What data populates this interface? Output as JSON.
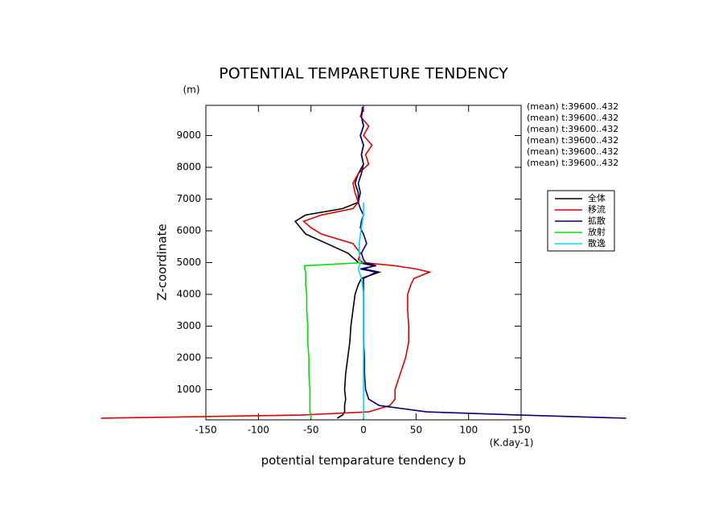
{
  "chart_data": {
    "type": "line",
    "title": "POTENTIAL TEMPARETURE TENDENCY",
    "x_label": "potential temparature tendency b",
    "y_label": "Z-coordinate",
    "x_unit": "(K.day-1)",
    "y_unit": "(m)",
    "annotations": [
      "(mean) t:39600..432",
      "(mean) t:39600..432",
      "(mean) t:39600..432",
      "(mean) t:39600..432",
      "(mean) t:39600..432",
      "(mean) t:39600..432"
    ],
    "y": [
      100,
      200,
      300,
      500,
      700,
      1000,
      1500,
      2000,
      2500,
      3000,
      3500,
      4000,
      4300,
      4500,
      4700,
      4800,
      4900,
      5000,
      5100,
      5300,
      5600,
      5900,
      6100,
      6300,
      6500,
      6700,
      6900,
      7200,
      7500,
      7800,
      8100,
      8400,
      8700,
      9000,
      9300,
      9600,
      9900
    ],
    "series": [
      {
        "name": "全体",
        "color": "#000000",
        "values": [
          -25,
          -20,
          -18,
          -18,
          -17,
          -18,
          -17,
          -15,
          -13,
          -12,
          -10,
          -8,
          -5,
          -2,
          15,
          0,
          10,
          -5,
          -8,
          -15,
          -35,
          -55,
          -60,
          -65,
          -55,
          -20,
          -5,
          -5,
          -8,
          -5,
          0,
          -2,
          0,
          -3,
          0,
          -2,
          0
        ]
      },
      {
        "name": "移流",
        "color": "#e00000",
        "values": [
          -250,
          -60,
          5,
          25,
          30,
          30,
          35,
          40,
          43,
          43,
          42,
          42,
          45,
          48,
          63,
          50,
          30,
          0,
          -5,
          -3,
          -10,
          -40,
          -50,
          -57,
          -40,
          -10,
          -5,
          -8,
          -10,
          -5,
          5,
          2,
          8,
          0,
          5,
          -3,
          0
        ]
      },
      {
        "name": "拡散",
        "color": "#000080",
        "values": [
          250,
          150,
          60,
          15,
          5,
          2,
          1,
          1,
          0,
          0,
          0,
          0,
          0,
          0,
          12,
          -3,
          12,
          2,
          0,
          -2,
          3,
          0,
          -3,
          -2,
          0,
          -3,
          -5,
          -3,
          -5,
          -2,
          0,
          -2,
          0,
          -3,
          0,
          -2,
          -1
        ]
      },
      {
        "name": "放射",
        "color": "#00e000",
        "values": [
          -50,
          -50,
          -51,
          -51,
          -51,
          -51,
          -52,
          -52,
          -53,
          -53,
          -54,
          -54,
          -55,
          -55,
          -55,
          -56,
          -56,
          0,
          null,
          null,
          null,
          null,
          null,
          null,
          null,
          null,
          null,
          null,
          null,
          null,
          null,
          null,
          null,
          null,
          null,
          null,
          null
        ]
      },
      {
        "name": "散逸",
        "color": "#00e0e0",
        "values": [
          0,
          0,
          0,
          0,
          0,
          0,
          0,
          0,
          0,
          0,
          0,
          0,
          -1,
          -2,
          -4,
          -5,
          -4,
          -3,
          -3,
          -4,
          -4,
          -3,
          -2,
          -1,
          0,
          0,
          0,
          null,
          null,
          null,
          null,
          null,
          null,
          null,
          null,
          null,
          null
        ]
      }
    ],
    "xlim": [
      -150,
      150
    ],
    "ylim": [
      50,
      9950
    ],
    "xticks": [
      -150,
      -100,
      -50,
      0,
      50,
      100,
      150
    ],
    "yticks": [
      1000,
      2000,
      3000,
      4000,
      5000,
      6000,
      7000,
      8000,
      9000
    ]
  }
}
